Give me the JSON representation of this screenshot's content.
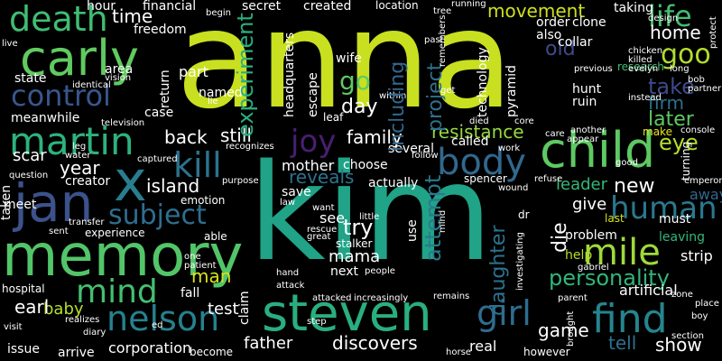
{
  "words": {
    "anna": "anna",
    "kim": "kim",
    "memory": "memory",
    "steven": "steven",
    "child": "child",
    "carly": "carly",
    "jan": "jan",
    "martin": "martin",
    "x": "x",
    "control": "control",
    "death": "death",
    "body": "body",
    "kill": "kill",
    "mile": "mile",
    "human": "human",
    "find": "find",
    "joy": "joy",
    "nelson": "nelson",
    "mind": "mind",
    "subject": "subject",
    "girl": "girl",
    "personality": "personality",
    "life": "life",
    "take": "take",
    "home": "home",
    "goo": "goo",
    "firm": "firm",
    "later": "later",
    "eye": "eye",
    "make": "make",
    "movement": "movement",
    "resistance": "resistance",
    "family": "family",
    "experiment": "experiment",
    "project": "project",
    "attempt": "attempt",
    "reveals": "reveals",
    "island": "island",
    "year": "year",
    "back": "back",
    "still": "still",
    "day": "day",
    "go": "go",
    "old": "old",
    "tell": "tell",
    "show": "show",
    "game": "game",
    "father": "father",
    "discovers": "discovers",
    "test": "test",
    "baby": "baby",
    "earl": "earl",
    "mother": "mother",
    "mama": "mama",
    "try": "try",
    "leader": "leader",
    "new": "new",
    "give": "give",
    "die": "die",
    "daughter": "daughter",
    "including": "including",
    "time": "time",
    "financial": "financial",
    "freedom": "freedom",
    "part": "part",
    "return": "return",
    "named": "named",
    "case": "case",
    "state": "state",
    "area": "area",
    "hour": "hour",
    "meanwhile": "meanwhile",
    "scar": "scar",
    "creator": "creator",
    "taken": "taken",
    "meet": "meet",
    "experience": "experience",
    "emotion": "emotion",
    "able": "able",
    "man": "man",
    "fall": "fall",
    "hospital": "hospital",
    "issue": "issue",
    "arrive": "arrive",
    "corporation": "corporation",
    "become": "become",
    "claim": "claim",
    "real": "real",
    "however": "however",
    "problem": "problem",
    "help": "help",
    "last": "last",
    "artificial": "artificial",
    "leaving": "leaving",
    "strip": "strip",
    "away": "away",
    "must": "must",
    "hunt": "hunt",
    "ruin": "ruin",
    "research": "research",
    "instead": "instead",
    "collar": "collar",
    "order": "order",
    "also": "also",
    "clone": "clone",
    "taking": "taking",
    "secret": "secret",
    "created": "created",
    "location": "location",
    "headquarters": "headquarters",
    "wife": "wife",
    "escape": "escape",
    "technology": "technology",
    "pyramid": "pyramid",
    "called": "called",
    "several": "several",
    "choose": "choose",
    "spencer": "spencer",
    "actually": "actually",
    "save": "save",
    "see": "see",
    "stalker": "stalker",
    "next": "next",
    "use": "use",
    "leaf": "leaf",
    "within": "within",
    "captured": "captured",
    "recognizes": "recognizes",
    "television": "television",
    "identical": "identical",
    "vision": "vision",
    "live": "live",
    "question": "question",
    "water": "water",
    "transfer": "transfer",
    "sent": "sent",
    "visit": "visit",
    "ed": "ed",
    "realizes": "realizes",
    "diary": "diary",
    "lie": "lie",
    "purpose": "purpose",
    "law": "law",
    "want": "want",
    "rescue": "rescue",
    "great": "great",
    "little": "little",
    "hand": "hand",
    "attack": "attack",
    "attacked": "attacked",
    "increasingly": "increasingly",
    "remains": "remains",
    "step": "step",
    "horse": "horse",
    "people": "people",
    "dr": "dr",
    "mind2": "mind",
    "investigating": "investigating",
    "wound": "wound",
    "refuse": "refuse",
    "gabriel": "gabriel",
    "parent": "parent",
    "brought": "brought",
    "section": "section",
    "boy": "boy",
    "place": "place",
    "zone": "zone",
    "console": "console",
    "emperor": "emperor",
    "turning": "turning",
    "good": "good",
    "protect": "protect",
    "running": "running",
    "remembers": "remembers",
    "tree": "tree",
    "past": "past",
    "begin": "begin",
    "design": "design",
    "chicken": "chicken",
    "killed": "killed",
    "evelyn": "evelyn",
    "long": "long",
    "bob": "bob",
    "partner": "partner",
    "previous": "previous",
    "another": "another",
    "appear": "appear",
    "care": "care",
    "work": "work",
    "core": "core",
    "follow": "follow",
    "get": "get",
    "died": "died",
    "leg": "leg",
    "one": "one",
    "patient": "patient",
    "miss": "miss",
    "position": "position",
    "deal": "deal"
  }
}
